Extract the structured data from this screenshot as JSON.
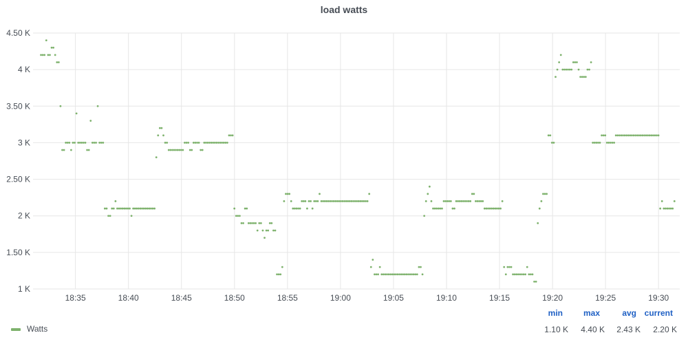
{
  "chart_data": {
    "type": "scatter",
    "title": "load watts",
    "xlabel": "",
    "ylabel": "",
    "x_start": "18:31:45",
    "x_end": "19:31:30",
    "xlim": [
      "18:31:00",
      "19:32:00"
    ],
    "ylim": [
      1000,
      4500
    ],
    "y_ticks": [
      {
        "value": 1000,
        "label": "1 K"
      },
      {
        "value": 1500,
        "label": "1.50 K"
      },
      {
        "value": 2000,
        "label": "2 K"
      },
      {
        "value": 2500,
        "label": "2.50 K"
      },
      {
        "value": 3000,
        "label": "3 K"
      },
      {
        "value": 3500,
        "label": "3.50 K"
      },
      {
        "value": 4000,
        "label": "4 K"
      },
      {
        "value": 4500,
        "label": "4.50 K"
      }
    ],
    "x_ticks": [
      "18:35",
      "18:40",
      "18:45",
      "18:50",
      "18:55",
      "19:00",
      "19:05",
      "19:10",
      "19:15",
      "19:20",
      "19:25",
      "19:30"
    ],
    "grid": true,
    "color": "#7eb26d",
    "series": [
      {
        "name": "Watts",
        "values": [
          4200,
          4200,
          4200,
          4400,
          4200,
          4200,
          4300,
          4300,
          4200,
          4100,
          4100,
          3500,
          2900,
          2900,
          3000,
          3000,
          3000,
          2900,
          3000,
          3000,
          3400,
          3000,
          3000,
          3000,
          3000,
          3000,
          2900,
          2900,
          3300,
          3000,
          3000,
          3000,
          3500,
          3000,
          3000,
          3000,
          2100,
          2100,
          2000,
          2000,
          2100,
          2100,
          2200,
          2100,
          2100,
          2100,
          2100,
          2100,
          2100,
          2100,
          2100,
          2000,
          2100,
          2100,
          2100,
          2100,
          2100,
          2100,
          2100,
          2100,
          2100,
          2100,
          2100,
          2100,
          2100,
          2800,
          3100,
          3200,
          3200,
          3100,
          3000,
          3000,
          2900,
          2900,
          2900,
          2900,
          2900,
          2900,
          2900,
          2900,
          2900,
          3000,
          3000,
          3000,
          2900,
          2900,
          3000,
          3000,
          3000,
          3000,
          2900,
          2900,
          3000,
          3000,
          3000,
          3000,
          3000,
          3000,
          3000,
          3000,
          3000,
          3000,
          3000,
          3000,
          3000,
          3000,
          3100,
          3100,
          3100,
          2100,
          2000,
          2000,
          2000,
          1900,
          1900,
          2100,
          2100,
          1900,
          1900,
          1900,
          1900,
          1900,
          1800,
          1900,
          1900,
          1800,
          1700,
          1800,
          1800,
          1900,
          1900,
          1800,
          1800,
          1200,
          1200,
          1200,
          1300,
          2200,
          2300,
          2300,
          2300,
          2200,
          2100,
          2100,
          2100,
          2100,
          2100,
          2200,
          2200,
          2200,
          2100,
          2200,
          2200,
          2100,
          2200,
          2200,
          2200,
          2300,
          2200,
          2200,
          2200,
          2200,
          2200,
          2200,
          2200,
          2200,
          2200,
          2200,
          2200,
          2200,
          2200,
          2200,
          2200,
          2200,
          2200,
          2200,
          2200,
          2200,
          2200,
          2200,
          2200,
          2200,
          2200,
          2200,
          2200,
          2300,
          1300,
          1400,
          1200,
          1200,
          1200,
          1300,
          1200,
          1200,
          1200,
          1200,
          1200,
          1200,
          1200,
          1200,
          1200,
          1200,
          1200,
          1200,
          1200,
          1200,
          1200,
          1200,
          1200,
          1200,
          1200,
          1200,
          1200,
          1300,
          1300,
          1200,
          2000,
          2200,
          2300,
          2400,
          2200,
          2100,
          2100,
          2100,
          2100,
          2100,
          2100,
          2200,
          2200,
          2200,
          2200,
          2200,
          2100,
          2100,
          2200,
          2200,
          2200,
          2200,
          2200,
          2200,
          2200,
          2200,
          2200,
          2300,
          2300,
          2200,
          2200,
          2200,
          2200,
          2200,
          2100,
          2100,
          2100,
          2100,
          2100,
          2100,
          2100,
          2100,
          2100,
          2100,
          2200,
          1300,
          1200,
          1300,
          1300,
          1300,
          1200,
          1200,
          1200,
          1200,
          1200,
          1200,
          1200,
          1200,
          1300,
          1200,
          1200,
          1200,
          1100,
          1100,
          1900,
          2100,
          2200,
          2300,
          2300,
          2300,
          3100,
          3100,
          3000,
          3000,
          3900,
          4000,
          4100,
          4200,
          4000,
          4000,
          4000,
          4000,
          4000,
          4000,
          4100,
          4100,
          4100,
          4000,
          3900,
          3900,
          3900,
          3900,
          4000,
          4000,
          4100,
          3000,
          3000,
          3000,
          3000,
          3000,
          3100,
          3100,
          3100,
          3000,
          3000,
          3000,
          3000,
          3000,
          3100,
          3100,
          3100,
          3100,
          3100,
          3100,
          3100,
          3100,
          3100,
          3100,
          3100,
          3100,
          3100,
          3100,
          3100,
          3100,
          3100,
          3100,
          3100,
          3100,
          3100,
          3100,
          3100,
          3100,
          3100,
          2100,
          2200,
          2100,
          2100,
          2100,
          2100,
          2100,
          2100,
          2200
        ]
      }
    ],
    "legend": {
      "placement": "bottom-left",
      "columns": [
        "min",
        "max",
        "avg",
        "current"
      ],
      "stats": {
        "min": "1.10 K",
        "max": "4.40 K",
        "avg": "2.43 K",
        "current": "2.20 K"
      }
    }
  }
}
